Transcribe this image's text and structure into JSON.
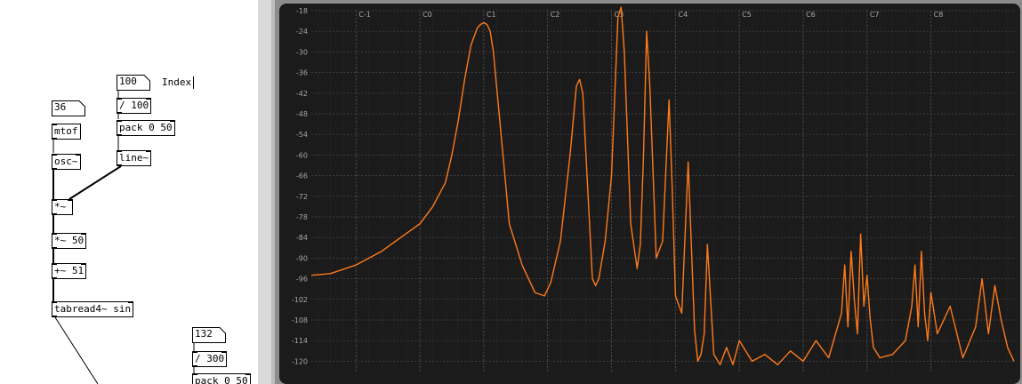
{
  "patch": {
    "objects": [
      {
        "id": "num36",
        "kind": "number",
        "text": "36"
      },
      {
        "id": "mtof",
        "kind": "object",
        "text": "mtof"
      },
      {
        "id": "osc",
        "kind": "object",
        "text": "osc~"
      },
      {
        "id": "num100",
        "kind": "number",
        "text": "100"
      },
      {
        "id": "div100",
        "kind": "object",
        "text": "/ 100"
      },
      {
        "id": "pack1",
        "kind": "object",
        "text": "pack 0 50"
      },
      {
        "id": "line",
        "kind": "object",
        "text": "line~"
      },
      {
        "id": "mul",
        "kind": "object",
        "text": "*~"
      },
      {
        "id": "mul50",
        "kind": "object",
        "text": "*~ 50"
      },
      {
        "id": "add51",
        "kind": "object",
        "text": "+~ 51"
      },
      {
        "id": "tabread",
        "kind": "object",
        "text": "tabread4~ sin"
      },
      {
        "id": "num132",
        "kind": "number",
        "text": "132"
      },
      {
        "id": "div300",
        "kind": "object",
        "text": "/ 300"
      },
      {
        "id": "pack2",
        "kind": "object",
        "text": "pack 0 50"
      }
    ],
    "comment": "Index"
  },
  "colors": {
    "accent": "#ff7a1a",
    "scope_bg": "#1b1b1b",
    "grid": "#4a4a4a",
    "frame": "#8c8c8c"
  },
  "chart_data": {
    "type": "line",
    "title": "",
    "xlabel": "",
    "ylabel": "",
    "ylim": [
      -123,
      -18
    ],
    "y_ticks": [
      -18,
      -24,
      -30,
      -36,
      -42,
      -48,
      -54,
      -60,
      -66,
      -72,
      -78,
      -84,
      -90,
      -96,
      -102,
      -108,
      -114,
      -120
    ],
    "x_ticks": [
      "C-1",
      "C0",
      "C1",
      "C2",
      "C3",
      "C4",
      "C5",
      "C6",
      "C7",
      "C8"
    ],
    "x_tick_values": [
      -1,
      0,
      1,
      2,
      3,
      4,
      5,
      6,
      7,
      8
    ],
    "xlim": [
      -1.7,
      9.3
    ],
    "grid": true,
    "series": [
      {
        "color": "#ff7a1a",
        "x": [
          -1.7,
          -1.4,
          -1.0,
          -0.6,
          -0.3,
          0.0,
          0.2,
          0.4,
          0.5,
          0.6,
          0.7,
          0.8,
          0.9,
          0.95,
          1.0,
          1.05,
          1.1,
          1.15,
          1.2,
          1.3,
          1.4,
          1.6,
          1.8,
          1.95,
          2.05,
          2.2,
          2.35,
          2.45,
          2.5,
          2.55,
          2.6,
          2.7,
          2.75,
          2.8,
          2.9,
          3.0,
          3.1,
          3.15,
          3.2,
          3.3,
          3.4,
          3.45,
          3.5,
          3.55,
          3.6,
          3.7,
          3.8,
          3.9,
          3.95,
          4.0,
          4.1,
          4.2,
          4.3,
          4.35,
          4.4,
          4.45,
          4.5,
          4.6,
          4.7,
          4.8,
          4.9,
          5.0,
          5.2,
          5.4,
          5.6,
          5.8,
          6.0,
          6.2,
          6.4,
          6.6,
          6.65,
          6.7,
          6.75,
          6.8,
          6.85,
          6.9,
          6.95,
          7.0,
          7.05,
          7.1,
          7.2,
          7.4,
          7.6,
          7.7,
          7.75,
          7.8,
          7.85,
          7.9,
          7.95,
          8.0,
          8.1,
          8.3,
          8.5,
          8.7,
          8.8,
          8.9,
          9.0,
          9.1,
          9.2,
          9.3
        ],
        "y": [
          -95,
          -94.5,
          -92,
          -88,
          -84,
          -80,
          -75,
          -68,
          -60,
          -50,
          -38,
          -28,
          -23,
          -22,
          -21.5,
          -22,
          -24,
          -30,
          -40,
          -60,
          -80,
          -92,
          -100,
          -101,
          -97,
          -85,
          -60,
          -40,
          -38,
          -42,
          -60,
          -96,
          -98,
          -96,
          -85,
          -66,
          -20,
          -17,
          -30,
          -80,
          -93,
          -86,
          -60,
          -24,
          -40,
          -90,
          -85,
          -44,
          -70,
          -101,
          -106,
          -62,
          -111,
          -120,
          -118,
          -112,
          -86,
          -118,
          -121,
          -116,
          -121,
          -114,
          -120,
          -118,
          -121,
          -117,
          -120,
          -114,
          -119,
          -106,
          -92,
          -110,
          -88,
          -102,
          -112,
          -83,
          -104,
          -95,
          -108,
          -116,
          -119,
          -118,
          -114,
          -104,
          -92,
          -110,
          -88,
          -106,
          -114,
          -100,
          -112,
          -104,
          -119,
          -110,
          -96,
          -112,
          -98,
          -108,
          -116,
          -120
        ]
      }
    ]
  }
}
